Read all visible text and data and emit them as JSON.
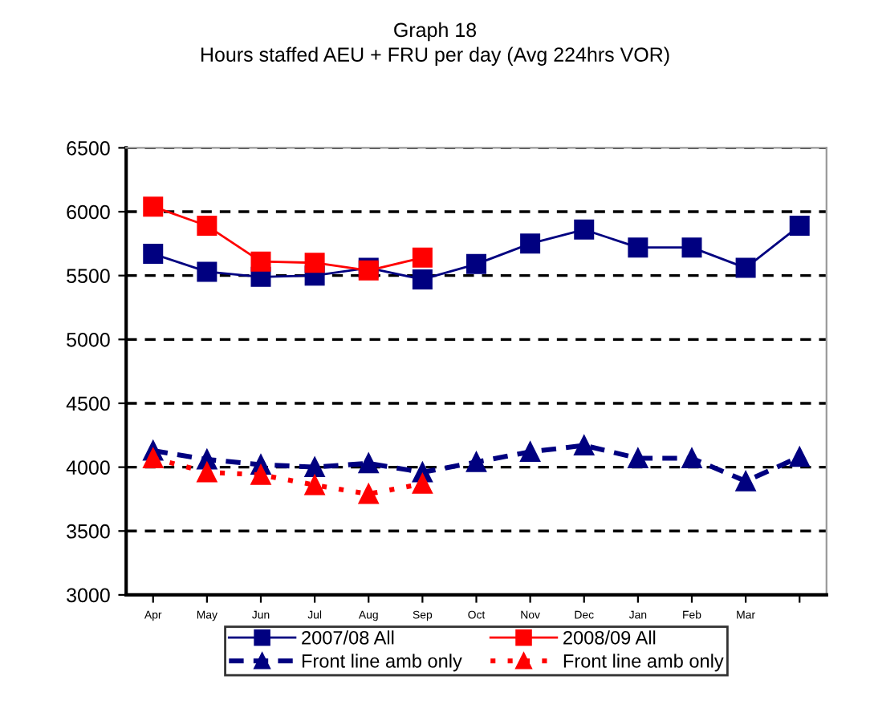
{
  "chart_data": {
    "type": "line",
    "title": "Graph 18",
    "subtitle": "Hours staffed AEU + FRU per day (Avg 224hrs VOR)",
    "categories": [
      "Apr",
      "May",
      "Jun",
      "Jul",
      "Aug",
      "Sep",
      "Oct",
      "Nov",
      "Dec",
      "Jan",
      "Feb",
      "Mar",
      null
    ],
    "series": [
      {
        "name": "2007/08 All",
        "color": "#000080",
        "marker": "square",
        "line_style": "solid",
        "values": [
          5670,
          5530,
          5490,
          5500,
          5560,
          5470,
          5590,
          5750,
          5860,
          5720,
          5720,
          5560,
          5890
        ]
      },
      {
        "name": "2008/09 All",
        "color": "#ff0000",
        "marker": "square",
        "line_style": "solid",
        "values": [
          6040,
          5890,
          5610,
          5600,
          5540,
          5640,
          null,
          null,
          null,
          null,
          null,
          null,
          null
        ]
      },
      {
        "name": "Front line amb only",
        "color": "#000080",
        "marker": "triangle",
        "line_style": "dashed",
        "values": [
          4130,
          4060,
          4020,
          4000,
          4030,
          3960,
          4040,
          4120,
          4170,
          4070,
          4070,
          3890,
          4080
        ]
      },
      {
        "name": "Front line amb only",
        "color": "#ff0000",
        "marker": "triangle",
        "line_style": "dotted",
        "values": [
          4070,
          3960,
          3940,
          3860,
          3790,
          3870,
          null,
          null,
          null,
          null,
          null,
          null,
          null
        ]
      }
    ],
    "ylim": [
      3000,
      6500
    ],
    "yticks": [
      3000,
      3500,
      4000,
      4500,
      5000,
      5500,
      6000,
      6500
    ],
    "grid": "y",
    "legend": "bottom"
  }
}
